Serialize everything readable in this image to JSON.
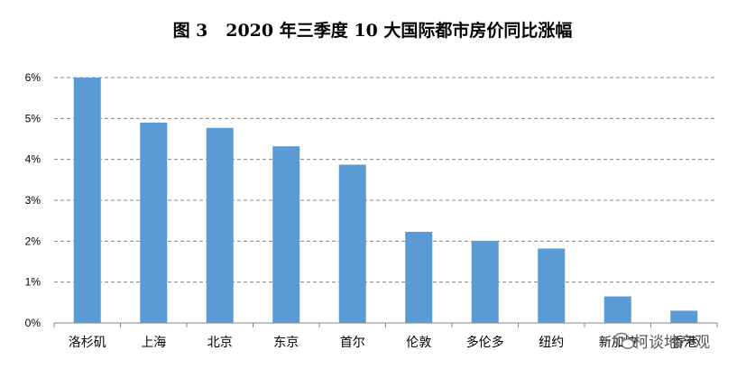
{
  "chart_data": {
    "type": "bar",
    "title": "图 3   2020 年三季度 10 大国际都市房价同比涨幅",
    "xlabel": "",
    "ylabel": "",
    "categories": [
      "洛杉矶",
      "上海",
      "北京",
      "东京",
      "首尔",
      "伦敦",
      "多伦多",
      "纽约",
      "新加坡",
      "香港"
    ],
    "values": [
      6.0,
      4.9,
      4.77,
      4.32,
      3.87,
      2.23,
      2.01,
      1.82,
      0.65,
      0.3
    ],
    "ylim": [
      0,
      6
    ],
    "yticks": [
      "0%",
      "1%",
      "2%",
      "3%",
      "4%",
      "5%",
      "6%"
    ],
    "grid": true,
    "legend": "none",
    "bar_color": "#5b9bd5",
    "grid_color": "#888888"
  },
  "watermark": {
    "text": "柯谈地产观"
  }
}
